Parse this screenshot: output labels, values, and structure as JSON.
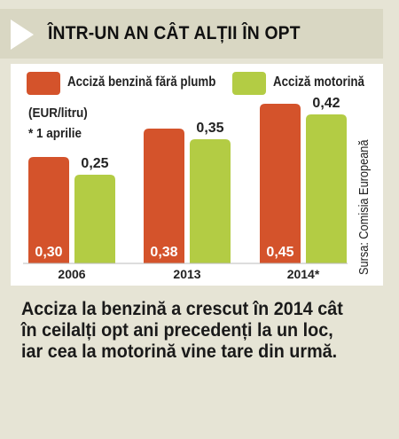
{
  "header": {
    "title": "ÎNTR-UN AN CÂT ALȚII ÎN OPT"
  },
  "notes": {
    "unit": "(EUR/litru)",
    "footnote": "* 1 aprilie"
  },
  "source": "Sursa: Comisia Europeană",
  "caption": "Acciza la benzină a crescut în 2014 cât în ceilalți opt ani precedenți la un loc, iar cea la motorină vine tare din urmă.",
  "colors": {
    "petrol": "#d4532b",
    "diesel": "#b3cc44",
    "panel": "#e6e4d5",
    "header": "#d9d7c3"
  },
  "chart_data": {
    "type": "bar",
    "title": "ÎNTR-UN AN CÂT ALȚII ÎN OPT",
    "ylabel": "(EUR/litru)",
    "categories": [
      "2006",
      "2013",
      "2014*"
    ],
    "series": [
      {
        "name": "Acciză benzină fără plumb",
        "values": [
          0.3,
          0.38,
          0.45
        ],
        "labels": [
          "0,30",
          "0,38",
          "0,45"
        ],
        "color": "#d4532b",
        "label_position": "inside-bottom"
      },
      {
        "name": "Acciză motorină",
        "values": [
          0.25,
          0.35,
          0.42
        ],
        "labels": [
          "0,25",
          "0,35",
          "0,42"
        ],
        "color": "#b3cc44",
        "label_position": "above"
      }
    ],
    "ylim": [
      0,
      0.45
    ],
    "grid": false,
    "legend_position": "top"
  }
}
